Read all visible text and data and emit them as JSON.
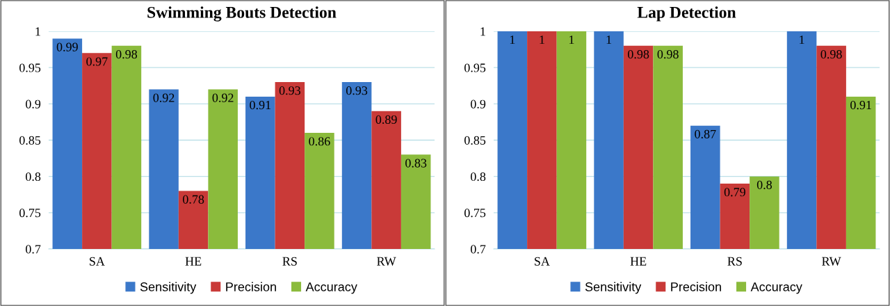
{
  "chart_data": [
    {
      "type": "bar",
      "title": "Swimming Bouts Detection",
      "categories": [
        "SA",
        "HE",
        "RS",
        "RW"
      ],
      "series": [
        {
          "name": "Sensitivity",
          "color": "#3b78c9",
          "values": [
            0.99,
            0.92,
            0.91,
            0.93
          ]
        },
        {
          "name": "Precision",
          "color": "#c93a38",
          "values": [
            0.97,
            0.78,
            0.93,
            0.89
          ]
        },
        {
          "name": "Accuracy",
          "color": "#8bbb3c",
          "values": [
            0.98,
            0.92,
            0.86,
            0.83
          ]
        }
      ],
      "ylim": [
        0.7,
        1
      ],
      "yticks": [
        0.7,
        0.75,
        0.8,
        0.85,
        0.9,
        0.95,
        1
      ],
      "grid": "y",
      "legend": "bottom",
      "data_labels": true
    },
    {
      "type": "bar",
      "title": "Lap Detection",
      "categories": [
        "SA",
        "HE",
        "RS",
        "RW"
      ],
      "series": [
        {
          "name": "Sensitivity",
          "color": "#3b78c9",
          "values": [
            1,
            1,
            0.87,
            1
          ]
        },
        {
          "name": "Precision",
          "color": "#c93a38",
          "values": [
            1,
            0.98,
            0.79,
            0.98
          ]
        },
        {
          "name": "Accuracy",
          "color": "#8bbb3c",
          "values": [
            1,
            0.98,
            0.8,
            0.91
          ]
        }
      ],
      "ylim": [
        0.7,
        1
      ],
      "yticks": [
        0.7,
        0.75,
        0.8,
        0.85,
        0.9,
        0.95,
        1
      ],
      "grid": "y",
      "legend": "bottom",
      "data_labels": true
    }
  ]
}
